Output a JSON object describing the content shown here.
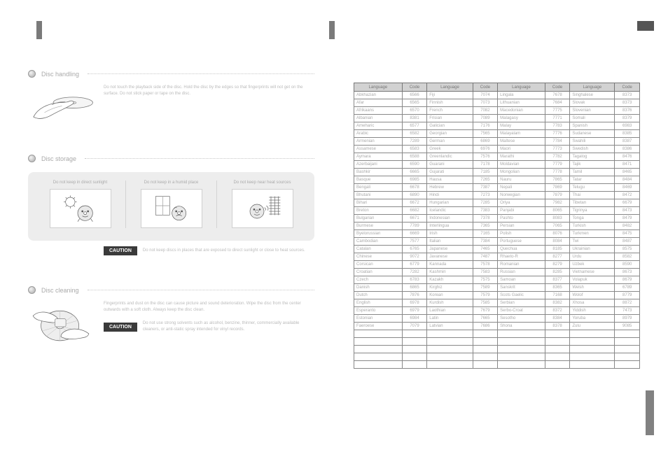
{
  "left": {
    "sections": {
      "handling": {
        "title": "Disc handling",
        "body": "Do not touch the playback side of the disc. Hold the disc by the edges so that fingerprints will not get on the surface. Do not stick paper or tape on the disc."
      },
      "storage": {
        "title": "Disc storage",
        "cells": [
          {
            "cap": "Do not keep in direct sunlight"
          },
          {
            "cap": "Do not keep in a humid place"
          },
          {
            "cap": "Do not keep near heat sources"
          }
        ],
        "caution_label": "CAUTION",
        "caution_text": "Do not keep discs in places that are exposed to direct sunlight or close to heat sources."
      },
      "cleaning": {
        "title": "Disc cleaning",
        "body": "Fingerprints and dust on the disc can cause picture and sound deterioration. Wipe the disc from the center outwards with a soft cloth. Always keep the disc clean.",
        "caution_label": "CAUTION",
        "caution_text": "Do not use strong solvents such as alcohol, benzine, thinner, commercially available cleaners, or anti-static spray intended for vinyl records."
      }
    }
  },
  "right": {
    "columns": [
      "Language",
      "Code",
      "Language",
      "Code",
      "Language",
      "Code",
      "Language",
      "Code"
    ],
    "rows": [
      [
        "Abkhazian",
        "6566",
        "Fiji",
        "7074",
        "Lingala",
        "7678",
        "Singhalese",
        "8373"
      ],
      [
        "Afar",
        "6565",
        "Finnish",
        "7073",
        "Lithuanian",
        "7684",
        "Slovak",
        "8373"
      ],
      [
        "Afrikaans",
        "6570",
        "French",
        "7082",
        "Macedonian",
        "7775",
        "Slovenian",
        "8376"
      ],
      [
        "Albanian",
        "8381",
        "Frisian",
        "7089",
        "Malagasy",
        "7771",
        "Somali",
        "8379"
      ],
      [
        "Ameharic",
        "6577",
        "Galician",
        "7176",
        "Malay",
        "7783",
        "Spanish",
        "6983"
      ],
      [
        "Arabic",
        "6582",
        "Georgian",
        "7565",
        "Malayalam",
        "7776",
        "Sudanese",
        "8385"
      ],
      [
        "Armenian",
        "7289",
        "German",
        "6869",
        "Maltese",
        "7784",
        "Swahili",
        "8387"
      ],
      [
        "Assamese",
        "6583",
        "Greek",
        "6976",
        "Maori",
        "7773",
        "Swedish",
        "8386"
      ],
      [
        "Aymara",
        "6588",
        "Greenlandic",
        "7576",
        "Marathi",
        "7782",
        "Tagalog",
        "8476"
      ],
      [
        "Azerbaijani",
        "6590",
        "Guarani",
        "7178",
        "Moldavian",
        "7779",
        "Tajik",
        "8471"
      ],
      [
        "Bashkir",
        "6665",
        "Gujarati",
        "7185",
        "Mongolian",
        "7778",
        "Tamil",
        "8465"
      ],
      [
        "Basque",
        "6985",
        "Hausa",
        "7265",
        "Nauru",
        "7865",
        "Tatar",
        "8484"
      ],
      [
        "Bengali",
        "6678",
        "Hebrew",
        "7387",
        "Nepali",
        "7869",
        "Telugu",
        "8469"
      ],
      [
        "Bhutani",
        "6890",
        "Hindi",
        "7273",
        "Norwegian",
        "7879",
        "Thai",
        "8472"
      ],
      [
        "Bihari",
        "6672",
        "Hungarian",
        "7285",
        "Oriya",
        "7982",
        "Tibetan",
        "6679"
      ],
      [
        "Breton",
        "6682",
        "Icelandic",
        "7383",
        "Panjabi",
        "8065",
        "Tigrinya",
        "8473"
      ],
      [
        "Bulgarian",
        "6671",
        "Indonesian",
        "7378",
        "Pashto",
        "8083",
        "Tonga",
        "8479"
      ],
      [
        "Burmese",
        "7789",
        "Interlingua",
        "7365",
        "Persian",
        "7065",
        "Turkish",
        "8482"
      ],
      [
        "Byelorussian",
        "6669",
        "Irish",
        "7165",
        "Polish",
        "8076",
        "Turkmen",
        "8475"
      ],
      [
        "Cambodian",
        "7577",
        "Italian",
        "7384",
        "Portuguese",
        "8084",
        "Twi",
        "8487"
      ],
      [
        "Catalan",
        "6765",
        "Japanese",
        "7465",
        "Quechua",
        "8185",
        "Ukrainian",
        "8575"
      ],
      [
        "Chinese",
        "9072",
        "Javanese",
        "7487",
        "Rhaeto-R",
        "8277",
        "Urdu",
        "8582"
      ],
      [
        "Corsican",
        "6779",
        "Kannada",
        "7578",
        "Romanian",
        "8279",
        "Uzbek",
        "8590"
      ],
      [
        "Croatian",
        "7282",
        "Kashmiri",
        "7583",
        "Russian",
        "8285",
        "Vietnamese",
        "8673"
      ],
      [
        "Czech",
        "6783",
        "Kazakh",
        "7575",
        "Samoan",
        "8377",
        "Volapuk",
        "8679"
      ],
      [
        "Danish",
        "6865",
        "Kirghiz",
        "7589",
        "Sanskrit",
        "8365",
        "Welsh",
        "6789"
      ],
      [
        "Dutch",
        "7876",
        "Korean",
        "7579",
        "Scots Gaelic",
        "7168",
        "Wolof",
        "8779"
      ],
      [
        "English",
        "6978",
        "Kurdish",
        "7585",
        "Serbian",
        "8382",
        "Xhosa",
        "8872"
      ],
      [
        "Esperanto",
        "6979",
        "Laothian",
        "7679",
        "Serbo-Croat",
        "8372",
        "Yiddish",
        "7473"
      ],
      [
        "Estonian",
        "6984",
        "Latin",
        "7665",
        "Sesotho",
        "8384",
        "Yoruba",
        "8979"
      ],
      [
        "Faeroese",
        "7079",
        "Latvian",
        "7686",
        "Shona",
        "8378",
        "Zulu",
        "9085"
      ],
      [
        "",
        "",
        "",
        "",
        "",
        "",
        "",
        ""
      ],
      [
        "",
        "",
        "",
        "",
        "",
        "",
        "",
        ""
      ],
      [
        "",
        "",
        "",
        "",
        "",
        "",
        "",
        ""
      ],
      [
        "",
        "",
        "",
        "",
        "",
        "",
        "",
        ""
      ],
      [
        "",
        "",
        "",
        "",
        "",
        "",
        "",
        ""
      ]
    ]
  }
}
